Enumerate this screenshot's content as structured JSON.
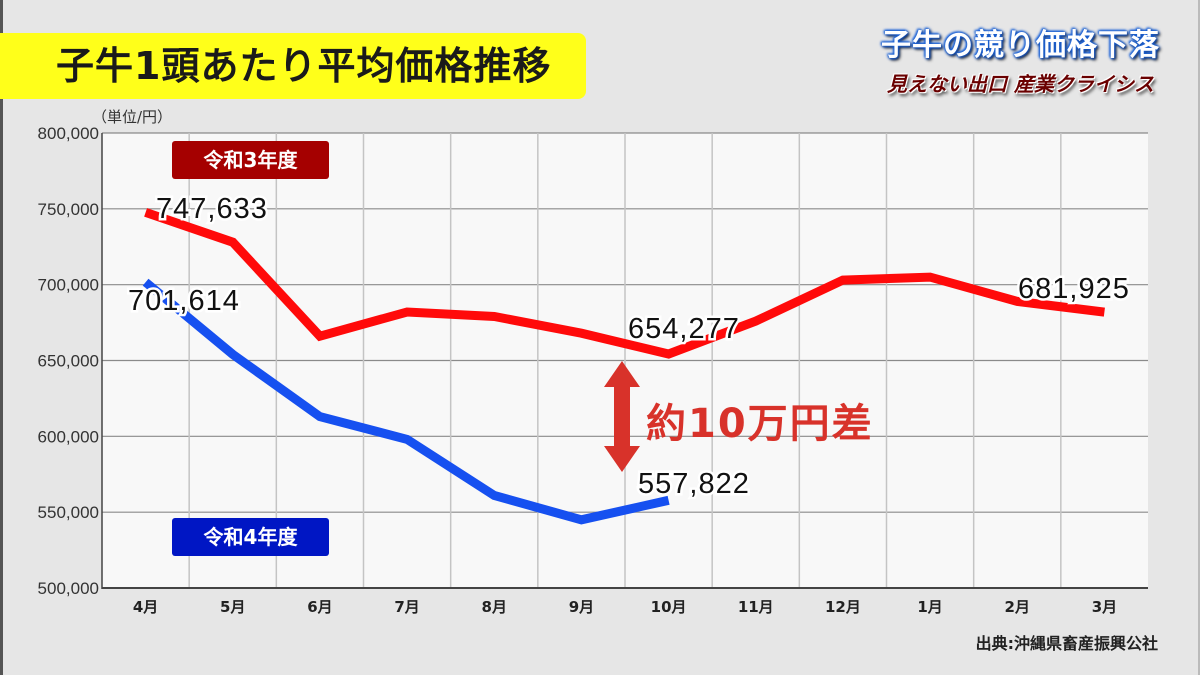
{
  "header": {
    "title": "子牛1頭あたり平均価格推移",
    "corner_title": "子牛の競り価格下落",
    "corner_subtitle": "見えない出口 産業クライシス"
  },
  "unit_label": "（単位/円）",
  "legend": {
    "r3": {
      "label": "令和3年度",
      "color": "#a50000"
    },
    "r4": {
      "label": "令和4年度",
      "color": "#0016c4"
    }
  },
  "annotation": {
    "difference_label": "約10万円差",
    "arrow_color": "#d8322a"
  },
  "value_labels": {
    "r3_start": "747,633",
    "r3_oct": "654,277",
    "r3_end": "681,925",
    "r4_start": "701,614",
    "r4_oct": "557,822"
  },
  "source": "出典:沖縄県畜産振興公社",
  "chart_data": {
    "type": "line",
    "title": "子牛1頭あたり平均価格推移",
    "xlabel": "",
    "ylabel": "（単位/円）",
    "categories": [
      "4月",
      "5月",
      "6月",
      "7月",
      "8月",
      "9月",
      "10月",
      "11月",
      "12月",
      "1月",
      "2月",
      "3月"
    ],
    "yticks": [
      "500,000",
      "550,000",
      "600,000",
      "650,000",
      "700,000",
      "750,000",
      "800,000"
    ],
    "ylim": [
      500000,
      800000
    ],
    "grid": true,
    "legend_position": "inline",
    "series": [
      {
        "name": "令和3年度",
        "color": "#ff0a0a",
        "values": [
          747633,
          728000,
          666000,
          682000,
          679000,
          668000,
          654277,
          676000,
          703000,
          705000,
          689000,
          681925
        ]
      },
      {
        "name": "令和4年度",
        "color": "#1650f0",
        "values": [
          701614,
          654000,
          613000,
          598000,
          561000,
          545000,
          557822,
          null,
          null,
          null,
          null,
          null
        ]
      }
    ],
    "annotations": [
      "747,633",
      "701,614",
      "654,277",
      "557,822",
      "681,925",
      "約10万円差"
    ]
  }
}
